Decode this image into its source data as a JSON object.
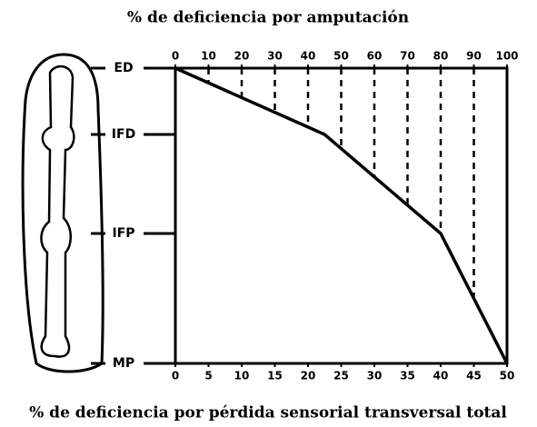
{
  "chart_data": {
    "type": "line",
    "title": "% de deficiencia por amputación",
    "xlabel": "% de deficiencia por pérdida sensorial transversal total",
    "categories": [
      "ED",
      "IFD",
      "IFP",
      "MP"
    ],
    "values": [
      0,
      45,
      80,
      100
    ],
    "color": "#000000",
    "xlim": [
      0,
      100
    ],
    "xticks": [
      0,
      10,
      20,
      30,
      40,
      50,
      60,
      70,
      80,
      90,
      100
    ],
    "x2lim": [
      0,
      50
    ],
    "x2ticks": [
      0,
      5,
      10,
      15,
      20,
      25,
      30,
      35,
      40,
      45,
      50
    ]
  }
}
